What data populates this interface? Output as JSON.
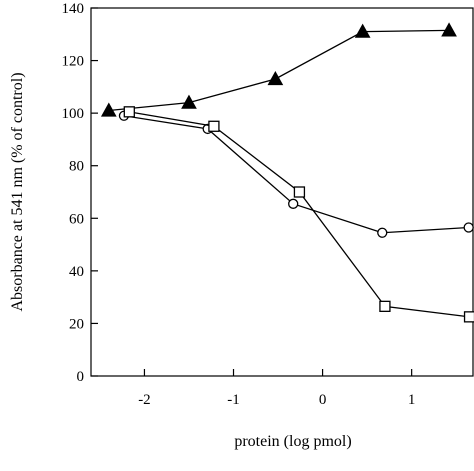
{
  "chart_data": {
    "type": "line",
    "title": "",
    "xlabel": "protein (log pmol)",
    "ylabel": "Absorbance at 541 nm (% of control)",
    "xlim": [
      -2.6,
      1.7
    ],
    "ylim": [
      0,
      140
    ],
    "x_ticks": [
      -2,
      -1,
      0,
      1
    ],
    "x_tick_labels": [
      "-2",
      "-1",
      "0",
      "1"
    ],
    "y_ticks": [
      0,
      20,
      40,
      60,
      80,
      100,
      120,
      140
    ],
    "y_tick_labels": [
      "0",
      "20",
      "40",
      "60",
      "80",
      "100",
      "120",
      "140"
    ],
    "grid": false,
    "series": [
      {
        "marker": "filled-triangle",
        "color": "#000000",
        "points": [
          {
            "x": -2.4,
            "y": 101
          },
          {
            "x": -1.5,
            "y": 104
          },
          {
            "x": -0.53,
            "y": 113
          },
          {
            "x": 0.45,
            "y": 131
          },
          {
            "x": 1.42,
            "y": 131.5
          }
        ]
      },
      {
        "marker": "open-circle",
        "color": "#000000",
        "points": [
          {
            "x": -2.23,
            "y": 99
          },
          {
            "x": -1.29,
            "y": 94
          },
          {
            "x": -0.33,
            "y": 65.5
          },
          {
            "x": 0.67,
            "y": 54.5
          },
          {
            "x": 1.64,
            "y": 56.5
          }
        ]
      },
      {
        "marker": "open-square",
        "color": "#000000",
        "points": [
          {
            "x": -2.17,
            "y": 100.5
          },
          {
            "x": -1.22,
            "y": 95
          },
          {
            "x": -0.26,
            "y": 70
          },
          {
            "x": 0.7,
            "y": 26.5
          },
          {
            "x": 1.65,
            "y": 22.5
          }
        ]
      }
    ]
  }
}
